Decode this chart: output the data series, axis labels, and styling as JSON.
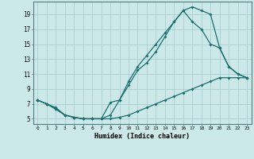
{
  "xlabel": "Humidex (Indice chaleur)",
  "bg_color": "#cce8e8",
  "grid_color": "#aacfcf",
  "line_color": "#1a7070",
  "xlim": [
    -0.5,
    23.5
  ],
  "ylim": [
    4.3,
    20.7
  ],
  "xticks": [
    0,
    1,
    2,
    3,
    4,
    5,
    6,
    7,
    8,
    9,
    10,
    11,
    12,
    13,
    14,
    15,
    16,
    17,
    18,
    19,
    20,
    21,
    22,
    23
  ],
  "yticks": [
    5,
    7,
    9,
    11,
    13,
    15,
    17,
    19
  ],
  "line1_x": [
    0,
    1,
    2,
    3,
    4,
    5,
    6,
    7,
    8,
    9,
    10,
    11,
    12,
    13,
    14,
    15,
    16,
    17,
    18,
    19,
    20,
    21,
    22,
    23
  ],
  "line1_y": [
    7.5,
    7.0,
    6.5,
    5.5,
    5.2,
    5.0,
    5.0,
    5.0,
    5.0,
    5.2,
    5.5,
    6.0,
    6.5,
    7.0,
    7.5,
    8.0,
    8.5,
    9.0,
    9.5,
    10.0,
    10.5,
    10.5,
    10.5,
    10.5
  ],
  "line2_x": [
    0,
    1,
    2,
    3,
    4,
    5,
    6,
    7,
    8,
    9,
    10,
    11,
    12,
    13,
    14,
    15,
    16,
    17,
    18,
    19,
    20,
    21,
    22,
    23
  ],
  "line2_y": [
    7.5,
    7.0,
    6.3,
    5.5,
    5.2,
    5.0,
    5.0,
    5.0,
    5.5,
    7.5,
    9.5,
    11.5,
    12.5,
    14.0,
    16.0,
    18.0,
    19.5,
    20.0,
    19.5,
    19.0,
    14.5,
    12.0,
    11.0,
    10.5
  ],
  "line3_x": [
    0,
    1,
    2,
    3,
    4,
    5,
    6,
    7,
    8,
    9,
    10,
    11,
    12,
    13,
    14,
    15,
    16,
    17,
    18,
    19,
    20,
    21,
    22,
    23
  ],
  "line3_y": [
    7.5,
    7.0,
    6.3,
    5.5,
    5.2,
    5.0,
    5.0,
    5.0,
    7.2,
    7.5,
    10.0,
    12.0,
    13.5,
    15.0,
    16.5,
    18.0,
    19.5,
    18.0,
    17.0,
    15.0,
    14.5,
    12.0,
    11.0,
    10.5
  ]
}
